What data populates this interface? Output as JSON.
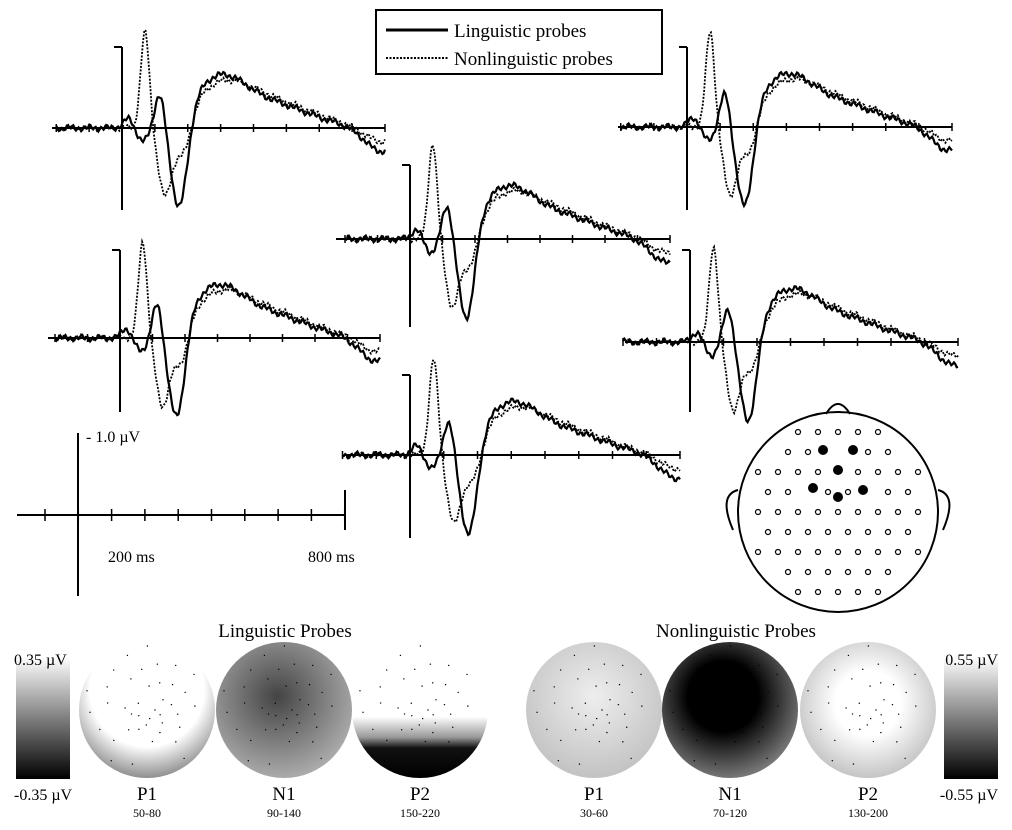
{
  "legend": [
    "Linguistic probes",
    "Nonlinguistic probes"
  ],
  "scale": {
    "amplitude": "- 1.0 µV",
    "time_start": "200 ms",
    "time_end": "800 ms"
  },
  "topomaps": [
    {
      "title": "Linguistic Probes",
      "max": "0.35 µV",
      "min": "-0.35 µV",
      "maps": [
        {
          "name": "P1",
          "range": "50-80"
        },
        {
          "name": "N1",
          "range": "90-140"
        },
        {
          "name": "P2",
          "range": "150-220"
        }
      ]
    },
    {
      "title": "Nonlinguistic Probes",
      "max": "0.55 µV",
      "min": "-0.55 µV",
      "maps": [
        {
          "name": "P1",
          "range": "30-60"
        },
        {
          "name": "N1",
          "range": "70-120"
        },
        {
          "name": "P2",
          "range": "130-200"
        }
      ]
    }
  ]
}
